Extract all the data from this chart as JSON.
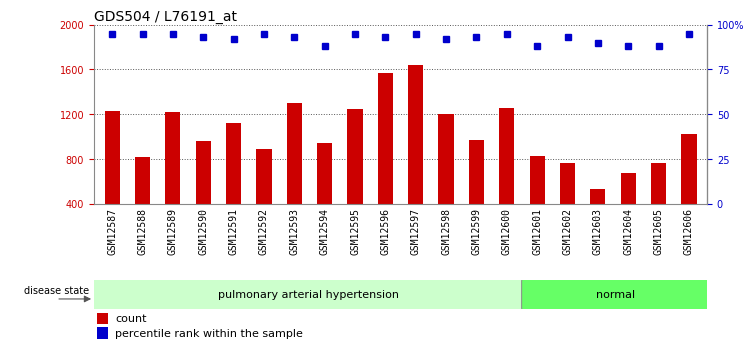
{
  "title": "GDS504 / L76191_at",
  "samples": [
    "GSM12587",
    "GSM12588",
    "GSM12589",
    "GSM12590",
    "GSM12591",
    "GSM12592",
    "GSM12593",
    "GSM12594",
    "GSM12595",
    "GSM12596",
    "GSM12597",
    "GSM12598",
    "GSM12599",
    "GSM12600",
    "GSM12601",
    "GSM12602",
    "GSM12603",
    "GSM12604",
    "GSM12605",
    "GSM12606"
  ],
  "bar_values": [
    1230,
    820,
    1220,
    960,
    1120,
    890,
    1300,
    940,
    1250,
    1570,
    1640,
    1200,
    970,
    1260,
    830,
    770,
    530,
    680,
    770,
    1020
  ],
  "percentile_values": [
    95,
    95,
    95,
    93,
    92,
    95,
    93,
    88,
    95,
    93,
    95,
    92,
    93,
    95,
    88,
    93,
    90,
    88,
    88,
    95
  ],
  "bar_color": "#cc0000",
  "dot_color": "#0000cc",
  "ylim_left": [
    400,
    2000
  ],
  "ylim_right": [
    0,
    100
  ],
  "yticks_left": [
    400,
    800,
    1200,
    1600,
    2000
  ],
  "yticks_right": [
    0,
    25,
    50,
    75,
    100
  ],
  "ytick_right_labels": [
    "0",
    "25",
    "50",
    "75",
    "100%"
  ],
  "group1_label": "pulmonary arterial hypertension",
  "group1_count": 14,
  "group2_label": "normal",
  "group2_count": 6,
  "group1_color": "#ccffcc",
  "group2_color": "#66ff66",
  "disease_state_label": "disease state",
  "legend_count_label": "count",
  "legend_percentile_label": "percentile rank within the sample",
  "plot_bg_color": "#ffffff",
  "xtick_bg_color": "#d0d0d0",
  "title_fontsize": 10,
  "tick_fontsize": 7,
  "label_fontsize": 8,
  "bar_width": 0.5,
  "dot_marker": "s",
  "dot_size": 4,
  "grid_linestyle": "dotted",
  "grid_color": "#555555",
  "spine_color": "#888888"
}
